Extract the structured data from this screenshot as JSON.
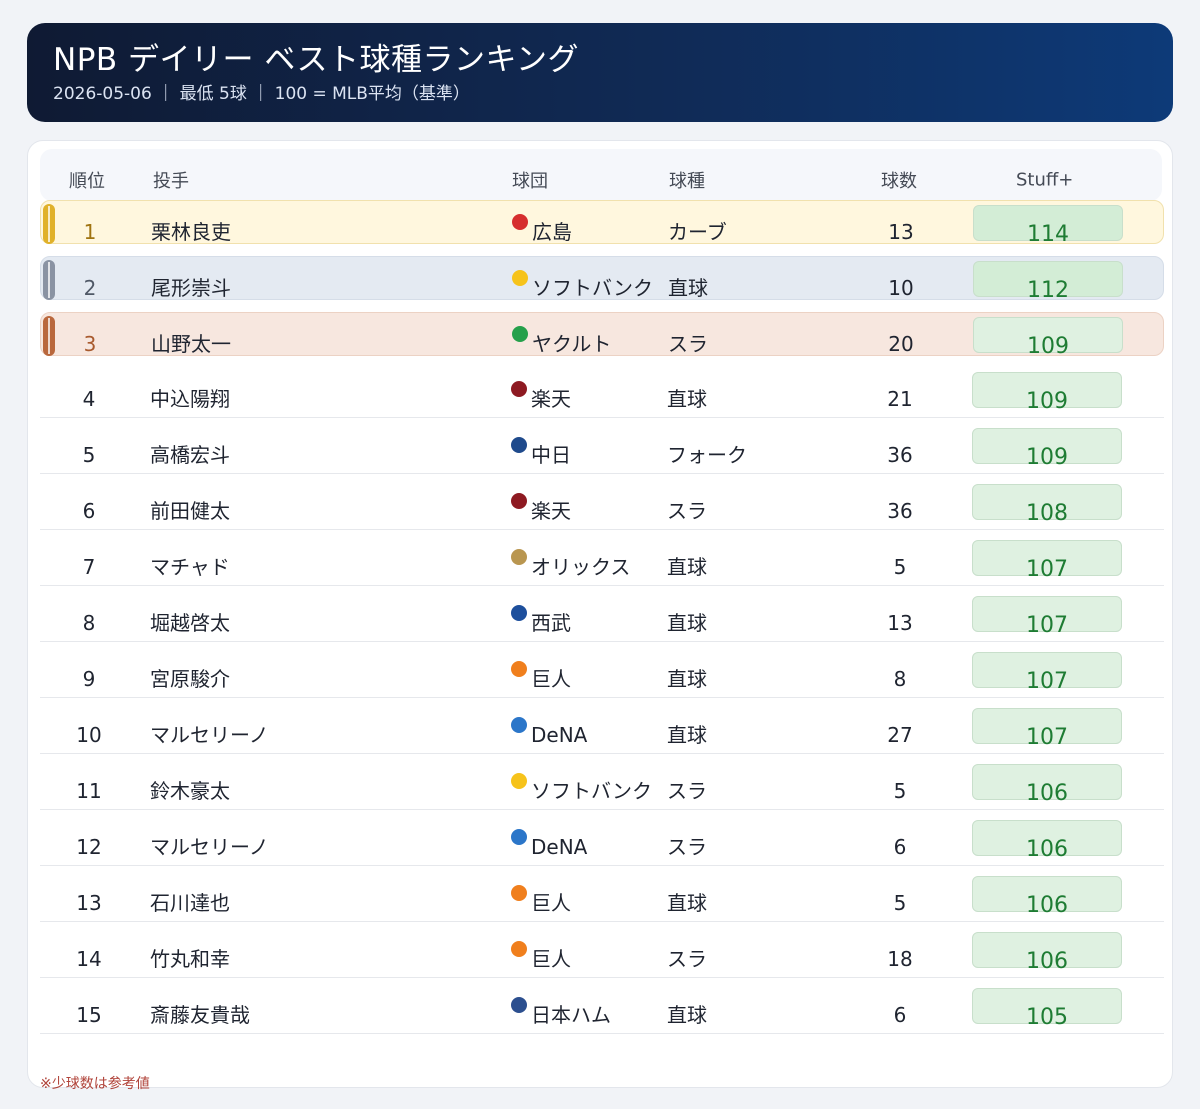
{
  "header": {
    "title": "NPB デイリー ベスト球種ランキング",
    "subtitle": "2026-05-06 ｜ 最低 5球 ｜ 100 = MLB平均（基準）"
  },
  "columns": {
    "rank": "順位",
    "pitcher": "投手",
    "team": "球団",
    "pitch": "球種",
    "count": "球数",
    "stuff": "Stuff+"
  },
  "colors": {
    "gold": "#e0b12a",
    "silver": "#8a93a3",
    "bronze": "#b9683d",
    "rank_gold_text": "#a07410",
    "rank_silver_text": "#4f5866",
    "rank_bronze_text": "#a85a2e"
  },
  "rows": [
    {
      "rank": "1",
      "name": "栗林良吏",
      "team": "広島",
      "team_color": "#d62e2e",
      "pitch": "カーブ",
      "count": "13",
      "stuff": "114"
    },
    {
      "rank": "2",
      "name": "尾形崇斗",
      "team": "ソフトバンク",
      "team_color": "#f6c31b",
      "pitch": "直球",
      "count": "10",
      "stuff": "112"
    },
    {
      "rank": "3",
      "name": "山野太一",
      "team": "ヤクルト",
      "team_color": "#25a04b",
      "pitch": "スラ",
      "count": "20",
      "stuff": "109"
    },
    {
      "rank": "4",
      "name": "中込陽翔",
      "team": "楽天",
      "team_color": "#8e1a22",
      "pitch": "直球",
      "count": "21",
      "stuff": "109"
    },
    {
      "rank": "5",
      "name": "高橋宏斗",
      "team": "中日",
      "team_color": "#1f4a8c",
      "pitch": "フォーク",
      "count": "36",
      "stuff": "109"
    },
    {
      "rank": "6",
      "name": "前田健太",
      "team": "楽天",
      "team_color": "#8e1a22",
      "pitch": "スラ",
      "count": "36",
      "stuff": "108"
    },
    {
      "rank": "7",
      "name": "マチャド",
      "team": "オリックス",
      "team_color": "#b99650",
      "pitch": "直球",
      "count": "5",
      "stuff": "107"
    },
    {
      "rank": "8",
      "name": "堀越啓太",
      "team": "西武",
      "team_color": "#1d4f9c",
      "pitch": "直球",
      "count": "13",
      "stuff": "107"
    },
    {
      "rank": "9",
      "name": "宮原駿介",
      "team": "巨人",
      "team_color": "#f07f1d",
      "pitch": "直球",
      "count": "8",
      "stuff": "107"
    },
    {
      "rank": "10",
      "name": "マルセリーノ",
      "team": "DeNA",
      "team_color": "#2b76c9",
      "pitch": "直球",
      "count": "27",
      "stuff": "107"
    },
    {
      "rank": "11",
      "name": "鈴木豪太",
      "team": "ソフトバンク",
      "team_color": "#f6c31b",
      "pitch": "スラ",
      "count": "5",
      "stuff": "106"
    },
    {
      "rank": "12",
      "name": "マルセリーノ",
      "team": "DeNA",
      "team_color": "#2b76c9",
      "pitch": "スラ",
      "count": "6",
      "stuff": "106"
    },
    {
      "rank": "13",
      "name": "石川達也",
      "team": "巨人",
      "team_color": "#f07f1d",
      "pitch": "直球",
      "count": "5",
      "stuff": "106"
    },
    {
      "rank": "14",
      "name": "竹丸和幸",
      "team": "巨人",
      "team_color": "#f07f1d",
      "pitch": "スラ",
      "count": "18",
      "stuff": "106"
    },
    {
      "rank": "15",
      "name": "斎藤友貴哉",
      "team": "日本ハム",
      "team_color": "#2c4f8f",
      "pitch": "直球",
      "count": "6",
      "stuff": "105"
    }
  ],
  "footnote": "※少球数は参考値"
}
